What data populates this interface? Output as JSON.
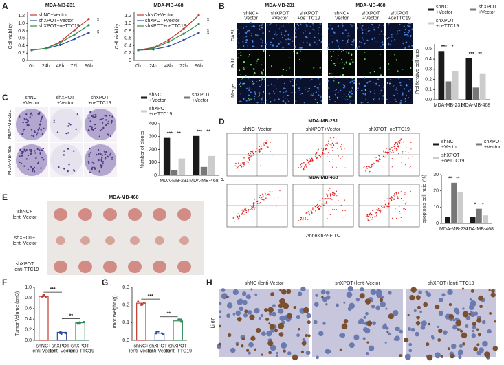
{
  "panel_letters": [
    "A",
    "B",
    "C",
    "D",
    "E",
    "F",
    "G",
    "H"
  ],
  "B_images": {
    "cell_lines": [
      "MDA-MB-231",
      "MDA-MB-468"
    ],
    "columns": [
      "shNC+ Vector",
      "shXPOT +Vector",
      "shXPOT +oeTTC19"
    ],
    "rows": [
      "DAPI",
      "EdU",
      "Merge"
    ]
  },
  "C_images": {
    "columns": [
      "shNC +Vector",
      "shXPOT +Vector",
      "shXPOT +oeTTC19"
    ],
    "rows": [
      "MDA-MB-231",
      "MDA-MB-468"
    ]
  },
  "D_images": {
    "titles": [
      "MDA-MB-231",
      "MDA-MB-468"
    ],
    "columns": [
      "shNC+Vector",
      "shXPOT+Vector",
      "shXPOT+oeTTC19"
    ],
    "y_label": "PI",
    "x_label": "Annexin-V-FITC"
  },
  "E_image": {
    "title": "MDA-MB-468",
    "rows": [
      "shNC+ lenti-Vector",
      "shXPOT+ lenti-Vector",
      "shXPOT +lenti-TTC19"
    ]
  },
  "H_images": {
    "columns": [
      "shNC+lenti-Vector",
      "shXPOT+lenti-Vector",
      "shXPOT+lenti-TTC19"
    ],
    "row": "ki 67"
  },
  "chart_data": [
    {
      "type": "line",
      "title": "MDA-MB-231",
      "y_label": "Cell viability",
      "categories": [
        "0h",
        "24h",
        "48h",
        "72h",
        "96h"
      ],
      "ylim": [
        0,
        1.3
      ],
      "yticks": [
        0,
        0.2,
        0.4,
        0.6,
        0.8,
        {
          "value": 1,
          "label": "1.0"
        },
        1.2
      ],
      "series": [
        {
          "name": "shNC+Vector",
          "color": "#c0392b",
          "values": [
            0.28,
            0.33,
            0.5,
            0.82,
            1.12
          ]
        },
        {
          "name": "shXPOT+Vector",
          "color": "#2e4a9e",
          "values": [
            0.28,
            0.32,
            0.42,
            0.58,
            0.75
          ]
        },
        {
          "name": "shXPOT+oeTTC19",
          "color": "#2e8b57",
          "values": [
            0.28,
            0.33,
            0.48,
            0.7,
            0.95
          ]
        }
      ],
      "annotations": [
        "**",
        "**"
      ]
    },
    {
      "type": "line",
      "title": "MDA-MB-468",
      "y_label": "Cell viability",
      "categories": [
        "0h",
        "24h",
        "48h",
        "72h",
        "96h"
      ],
      "ylim": [
        0,
        1.3
      ],
      "yticks": [
        0,
        0.2,
        0.4,
        0.6,
        0.8,
        {
          "value": 1,
          "label": "1.0"
        },
        1.2
      ],
      "series": [
        {
          "name": "shNC+Vector",
          "color": "#c0392b",
          "values": [
            0.28,
            0.35,
            0.55,
            0.85,
            1.22
          ]
        },
        {
          "name": "shXPOT+Vector",
          "color": "#2e4a9e",
          "values": [
            0.28,
            0.3,
            0.38,
            0.55,
            0.75
          ]
        },
        {
          "name": "shXPOT+oeTTC19",
          "color": "#2e8b57",
          "values": [
            0.28,
            0.33,
            0.5,
            0.72,
            0.98
          ]
        }
      ],
      "annotations": [
        "**",
        "***"
      ]
    },
    {
      "type": "bar",
      "y_label": "Proliferative cell ratio",
      "categories": [
        "MDA-MB-231",
        "MDA-MB-468"
      ],
      "ylim": [
        0,
        0.55
      ],
      "yticks": [
        {
          "value": 0,
          "label": "0.0"
        },
        0.1,
        0.2,
        0.3,
        0.4,
        0.5
      ],
      "series": [
        {
          "name": "shNC +Vector",
          "color": "#1a1a1a",
          "values": [
            0.48,
            0.41
          ]
        },
        {
          "name": "shXPOT +Vector",
          "color": "#777777",
          "values": [
            0.18,
            0.12
          ]
        },
        {
          "name": "shXPOT +oeTTC19",
          "color": "#cccccc",
          "values": [
            0.28,
            0.26
          ]
        }
      ],
      "annotations": [
        "***",
        "*",
        "***",
        "**"
      ]
    },
    {
      "type": "bar",
      "y_label": "Number of clones",
      "categories": [
        "MDA-MB-231",
        "MDA-MB-468"
      ],
      "ylim": [
        0,
        400
      ],
      "yticks": [
        0,
        100,
        200,
        300,
        400
      ],
      "series": [
        {
          "name": "shNC +Vector",
          "color": "#1a1a1a",
          "values": [
            290,
            305
          ]
        },
        {
          "name": "shXPOT +Vector",
          "color": "#777777",
          "values": [
            40,
            65
          ]
        },
        {
          "name": "shXPOT +oeTTC19",
          "color": "#cccccc",
          "values": [
            130,
            150
          ]
        }
      ],
      "annotations": [
        "***",
        "**",
        "***",
        "**"
      ]
    },
    {
      "type": "bar",
      "y_label": "apoptosis cell ratio (%)",
      "categories": [
        "MDA-MB-231",
        "MDA-MB-468"
      ],
      "ylim": [
        0,
        30
      ],
      "yticks": [
        0,
        10,
        20,
        30
      ],
      "series": [
        {
          "name": "shNC +Vector",
          "color": "#1a1a1a",
          "values": [
            4,
            4
          ]
        },
        {
          "name": "shXPOT +Vector",
          "color": "#777777",
          "values": [
            25,
            9
          ]
        },
        {
          "name": "shXPOT +oeTTC19",
          "color": "#cccccc",
          "values": [
            19,
            5
          ]
        }
      ],
      "annotations": [
        "**",
        "**",
        "*",
        "*"
      ]
    },
    {
      "type": "bar",
      "y_label": "Tumor Volume (cm3)",
      "categories": [
        "shNC+ lenti-Vector",
        "shXPOT+ lenti-Vector",
        "shXPOT +lenti-TTC19"
      ],
      "values": [
        0.83,
        0.15,
        0.33
      ],
      "colors": [
        "#c0392b",
        "#2e4a9e",
        "#2e8b57"
      ],
      "ylim": [
        0,
        1
      ],
      "yticks": [
        {
          "value": 0,
          "label": "0.0"
        },
        0.2,
        0.4,
        0.6,
        0.8,
        {
          "value": 1,
          "label": "1.0"
        }
      ],
      "annotations": [
        "***",
        "**"
      ]
    },
    {
      "type": "bar",
      "y_label": "Tumor Weight (g)",
      "categories": [
        "shNC+ lenti-Vector",
        "shXPOT+ lenti-Vector",
        "shXPOT +lenti-TTC19"
      ],
      "values": [
        0.21,
        0.04,
        0.11
      ],
      "colors": [
        "#c0392b",
        "#2e4a9e",
        "#2e8b57"
      ],
      "ylim": [
        0,
        0.3
      ],
      "yticks": [
        {
          "value": 0,
          "label": "0.0"
        },
        0.1,
        0.2,
        0.3
      ],
      "annotations": [
        "***",
        "**"
      ]
    }
  ]
}
